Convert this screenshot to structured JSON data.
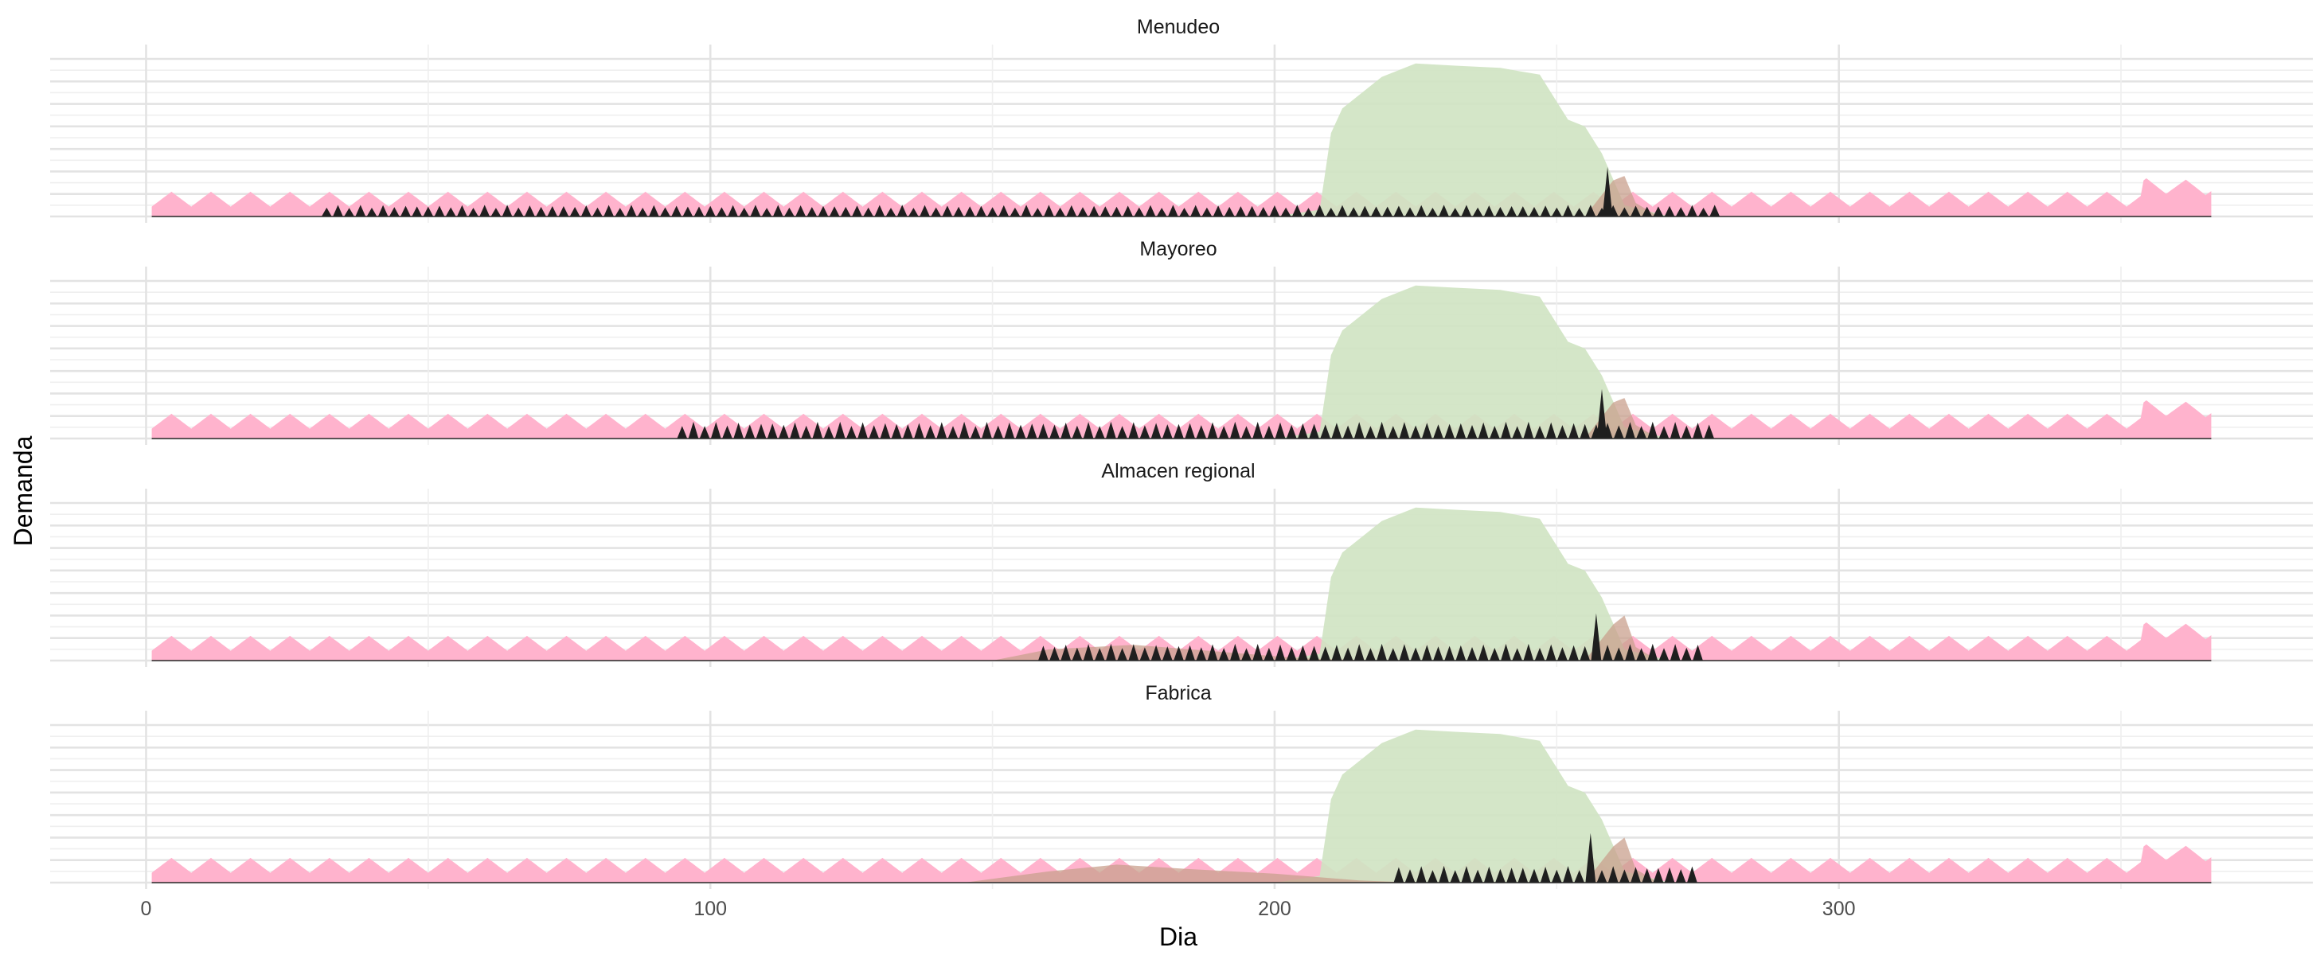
{
  "chart_data": {
    "type": "area",
    "xlabel": "Dia",
    "ylabel": "Demanda",
    "xlim": [
      -17,
      384
    ],
    "xticks": [
      0,
      100,
      200,
      300
    ],
    "x_tick_labels": [
      "0",
      "100",
      "200",
      "300"
    ],
    "grid": true,
    "legend": "none",
    "colors": {
      "baseline_demand": "#ffb3cd",
      "seasonal_peak": "#cfe3c2",
      "secondary_peak": "#c9a08e",
      "orders": "#1f1f1f"
    },
    "panels": [
      {
        "title": "Menudeo",
        "ylim": [
          0,
          7
        ],
        "series": [
          {
            "key": "baseline_demand",
            "x_range": [
              1,
              366
            ],
            "level": 0.8,
            "peak": 1.1,
            "period": 7,
            "late_rise": [
              [
                354,
                1.5
              ],
              [
                366,
                1.4
              ]
            ]
          },
          {
            "key": "seasonal_peak",
            "points": [
              [
                200,
                0
              ],
              [
                208,
                0.3
              ],
              [
                210,
                3.7
              ],
              [
                212,
                4.8
              ],
              [
                216,
                5.6
              ],
              [
                219,
                6.2
              ],
              [
                225,
                6.8
              ],
              [
                232,
                6.7
              ],
              [
                240,
                6.6
              ],
              [
                247,
                6.3
              ],
              [
                252,
                4.3
              ],
              [
                255,
                4.0
              ],
              [
                258,
                2.8
              ],
              [
                262,
                0.5
              ],
              [
                270,
                0
              ]
            ]
          },
          {
            "key": "secondary_peak",
            "points": [
              [
                255,
                0
              ],
              [
                260,
                1.6
              ],
              [
                262,
                1.8
              ],
              [
                264,
                0.6
              ],
              [
                268,
                0
              ]
            ]
          },
          {
            "key": "orders",
            "start": 32,
            "end": 278,
            "period": 2,
            "height": 0.45,
            "big_spike": {
              "x": 259,
              "height": 2.2
            }
          }
        ]
      },
      {
        "title": "Mayoreo",
        "ylim": [
          0,
          7
        ],
        "series": [
          {
            "key": "baseline_demand",
            "x_range": [
              1,
              366
            ],
            "level": 0.8,
            "peak": 1.1,
            "period": 7,
            "late_rise": [
              [
                354,
                1.5
              ],
              [
                366,
                1.4
              ]
            ]
          },
          {
            "key": "seasonal_peak",
            "points": [
              [
                200,
                0
              ],
              [
                208,
                0.3
              ],
              [
                210,
                3.7
              ],
              [
                212,
                4.8
              ],
              [
                216,
                5.6
              ],
              [
                219,
                6.2
              ],
              [
                225,
                6.8
              ],
              [
                232,
                6.7
              ],
              [
                240,
                6.6
              ],
              [
                247,
                6.3
              ],
              [
                252,
                4.3
              ],
              [
                255,
                4.0
              ],
              [
                258,
                2.8
              ],
              [
                262,
                0.5
              ],
              [
                270,
                0
              ]
            ]
          },
          {
            "key": "secondary_peak",
            "points": [
              [
                255,
                0
              ],
              [
                260,
                1.6
              ],
              [
                262,
                1.8
              ],
              [
                264,
                0.6
              ],
              [
                268,
                0
              ]
            ]
          },
          {
            "key": "orders",
            "start": 95,
            "end": 277,
            "period": 2,
            "height": 0.65,
            "big_spike": {
              "x": 258,
              "height": 2.2
            }
          }
        ]
      },
      {
        "title": "Almacen regional",
        "ylim": [
          0,
          7
        ],
        "series": [
          {
            "key": "baseline_demand",
            "x_range": [
              1,
              366
            ],
            "level": 0.8,
            "peak": 1.1,
            "period": 7,
            "late_rise": [
              [
                354,
                1.5
              ],
              [
                366,
                1.4
              ]
            ]
          },
          {
            "key": "seasonal_peak",
            "points": [
              [
                200,
                0
              ],
              [
                208,
                0.3
              ],
              [
                210,
                3.7
              ],
              [
                212,
                4.8
              ],
              [
                216,
                5.6
              ],
              [
                219,
                6.2
              ],
              [
                225,
                6.8
              ],
              [
                232,
                6.7
              ],
              [
                240,
                6.6
              ],
              [
                247,
                6.3
              ],
              [
                252,
                4.3
              ],
              [
                255,
                4.0
              ],
              [
                258,
                2.8
              ],
              [
                262,
                0.5
              ],
              [
                270,
                0
              ]
            ]
          },
          {
            "key": "secondary_peak",
            "points": [
              [
                150,
                0
              ],
              [
                160,
                0.5
              ],
              [
                175,
                0.7
              ],
              [
                190,
                0.4
              ],
              [
                205,
                0.1
              ],
              [
                220,
                0
              ],
              [
                255,
                0
              ],
              [
                260,
                1.6
              ],
              [
                262,
                2.0
              ],
              [
                264,
                0.6
              ],
              [
                268,
                0
              ]
            ]
          },
          {
            "key": "orders",
            "start": 159,
            "end": 276,
            "period": 2,
            "height": 0.65,
            "big_spike": {
              "x": 257,
              "height": 2.1
            }
          }
        ]
      },
      {
        "title": "Fabrica",
        "ylim": [
          0,
          7
        ],
        "series": [
          {
            "key": "baseline_demand",
            "x_range": [
              1,
              366
            ],
            "level": 0.8,
            "peak": 1.1,
            "period": 7,
            "late_rise": [
              [
                354,
                1.5
              ],
              [
                366,
                1.4
              ]
            ]
          },
          {
            "key": "seasonal_peak",
            "points": [
              [
                200,
                0
              ],
              [
                208,
                0.3
              ],
              [
                210,
                3.7
              ],
              [
                212,
                4.8
              ],
              [
                216,
                5.6
              ],
              [
                219,
                6.2
              ],
              [
                225,
                6.8
              ],
              [
                232,
                6.7
              ],
              [
                240,
                6.6
              ],
              [
                247,
                6.3
              ],
              [
                252,
                4.3
              ],
              [
                255,
                4.0
              ],
              [
                258,
                2.8
              ],
              [
                262,
                0.5
              ],
              [
                270,
                0
              ]
            ]
          },
          {
            "key": "secondary_peak",
            "points": [
              [
                145,
                0
              ],
              [
                160,
                0.5
              ],
              [
                172,
                0.8
              ],
              [
                185,
                0.6
              ],
              [
                200,
                0.4
              ],
              [
                215,
                0.1
              ],
              [
                225,
                0
              ],
              [
                255,
                0
              ],
              [
                260,
                1.6
              ],
              [
                262,
                2.0
              ],
              [
                264,
                0.6
              ],
              [
                268,
                0
              ]
            ]
          },
          {
            "key": "orders",
            "start": 222,
            "end": 275,
            "period": 2,
            "height": 0.65,
            "big_spike": {
              "x": 256,
              "height": 2.2
            }
          }
        ]
      }
    ]
  }
}
